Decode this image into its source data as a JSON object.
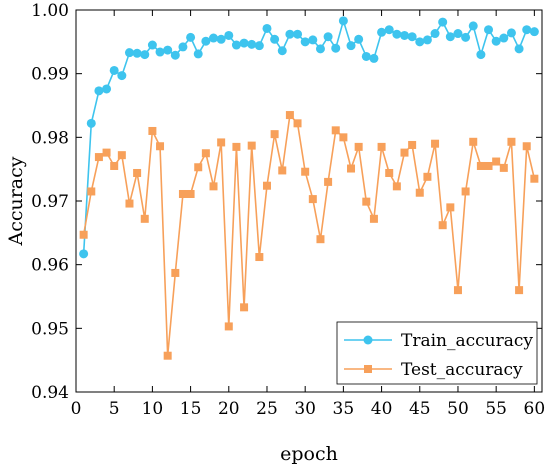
{
  "chart_data": {
    "type": "line",
    "xlabel": "epoch",
    "ylabel": "Accuracy",
    "xlim": [
      0,
      61
    ],
    "ylim": [
      0.94,
      1.0
    ],
    "x_ticks": [
      0,
      5,
      10,
      15,
      20,
      25,
      30,
      35,
      40,
      45,
      50,
      55,
      60
    ],
    "y_ticks": [
      "0.94",
      "0.95",
      "0.96",
      "0.97",
      "0.98",
      "0.99",
      "1.00"
    ],
    "legend_position": "bottom-right",
    "grid": false,
    "x": [
      1,
      2,
      3,
      4,
      5,
      6,
      7,
      8,
      9,
      10,
      11,
      12,
      13,
      14,
      15,
      16,
      17,
      18,
      19,
      20,
      21,
      22,
      23,
      24,
      25,
      26,
      27,
      28,
      29,
      30,
      31,
      32,
      33,
      34,
      35,
      36,
      37,
      38,
      39,
      40,
      41,
      42,
      43,
      44,
      45,
      46,
      47,
      48,
      49,
      50,
      51,
      52,
      53,
      54,
      55,
      56,
      57,
      58,
      59,
      60
    ],
    "series": [
      {
        "name": "Train_accuracy",
        "color": "#3ec4ee",
        "marker": "circle",
        "values": [
          0.9617,
          0.9822,
          0.9873,
          0.9876,
          0.9905,
          0.9897,
          0.9933,
          0.9932,
          0.993,
          0.9945,
          0.9934,
          0.9937,
          0.9929,
          0.9942,
          0.9957,
          0.9931,
          0.9951,
          0.9956,
          0.9954,
          0.996,
          0.9945,
          0.9948,
          0.9946,
          0.9944,
          0.9971,
          0.9954,
          0.9936,
          0.9962,
          0.9962,
          0.995,
          0.9953,
          0.9939,
          0.9958,
          0.994,
          0.9983,
          0.9944,
          0.9954,
          0.9927,
          0.9924,
          0.9965,
          0.9969,
          0.9962,
          0.996,
          0.9958,
          0.995,
          0.9953,
          0.9963,
          0.9981,
          0.9958,
          0.9963,
          0.9957,
          0.9975,
          0.993,
          0.9969,
          0.9951,
          0.9956,
          0.9964,
          0.9939,
          0.9969,
          0.9966
        ]
      },
      {
        "name": "Test_accuracy",
        "color": "#f7a05a",
        "marker": "square",
        "values": [
          0.9647,
          0.9715,
          0.9769,
          0.9776,
          0.9755,
          0.9772,
          0.9696,
          0.9744,
          0.9672,
          0.981,
          0.9786,
          0.9457,
          0.9587,
          0.9711,
          0.9711,
          0.9753,
          0.9775,
          0.9723,
          0.9792,
          0.9503,
          0.9785,
          0.9533,
          0.9787,
          0.9612,
          0.9724,
          0.9805,
          0.9748,
          0.9835,
          0.9822,
          0.9746,
          0.9703,
          0.964,
          0.973,
          0.9811,
          0.98,
          0.9751,
          0.9785,
          0.9699,
          0.9672,
          0.9785,
          0.9744,
          0.9723,
          0.9776,
          0.9788,
          0.9713,
          0.9738,
          0.979,
          0.9662,
          0.969,
          0.956,
          0.9715,
          0.9793,
          0.9755,
          0.9755,
          0.9762,
          0.9752,
          0.9793,
          0.956,
          0.9786,
          0.9735
        ]
      }
    ]
  }
}
